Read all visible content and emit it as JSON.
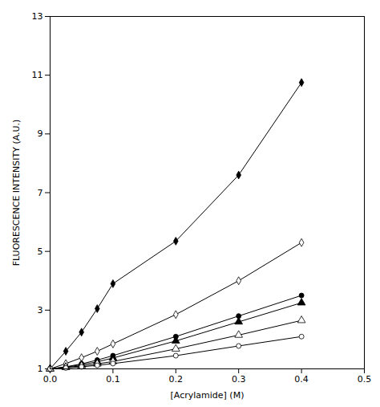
{
  "chart_data": {
    "type": "line",
    "xlabel": "[Acrylamide] (M)",
    "ylabel": "FLUORESCENCE INTENSITY (A.U.)",
    "x": [
      0,
      0.025,
      0.05,
      0.075,
      0.1,
      0.2,
      0.3,
      0.4
    ],
    "xlim": [
      0,
      0.5
    ],
    "ylim": [
      1,
      13
    ],
    "xticks": [
      {
        "value": 0,
        "label": "0.0"
      },
      0.1,
      0.2,
      0.3,
      0.4,
      0.5
    ],
    "yticks": [
      1,
      3,
      5,
      7,
      9,
      11,
      13
    ],
    "grid": false,
    "series": [
      {
        "color": "black",
        "marker": "diamond",
        "values": [
          1,
          1.6,
          2.25,
          3.05,
          3.9,
          5.35,
          7.6,
          10.75
        ]
      },
      {
        "color": "black",
        "marker": "diamond-open",
        "values": [
          1,
          1.18,
          1.38,
          1.6,
          1.85,
          2.85,
          4.0,
          5.3
        ]
      },
      {
        "color": "black",
        "marker": "circle",
        "values": [
          1,
          1.07,
          1.17,
          1.3,
          1.45,
          2.1,
          2.8,
          3.5
        ]
      },
      {
        "color": "black",
        "marker": "triangle",
        "values": [
          1,
          1.06,
          1.14,
          1.24,
          1.37,
          1.95,
          2.6,
          3.25
        ]
      },
      {
        "color": "black",
        "marker": "triangle-open",
        "values": [
          1,
          1.05,
          1.1,
          1.17,
          1.25,
          1.68,
          2.15,
          2.65
        ]
      },
      {
        "color": "black",
        "marker": "circle-open",
        "values": [
          1,
          1.03,
          1.07,
          1.12,
          1.18,
          1.45,
          1.78,
          2.1
        ]
      }
    ]
  }
}
